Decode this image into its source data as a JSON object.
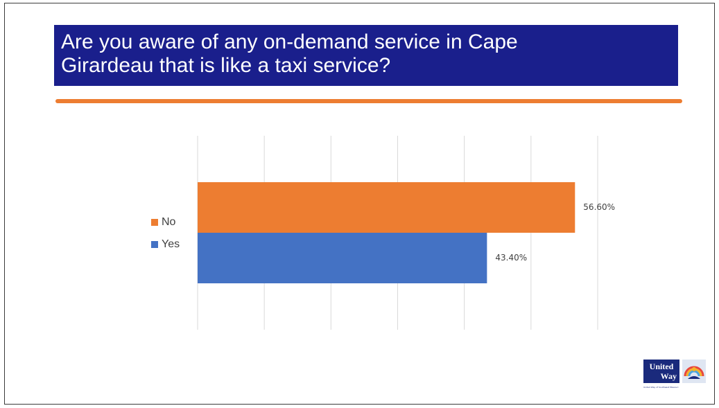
{
  "slide": {
    "title": "Are you aware of any on-demand service in Cape\nGirardeau that is like a taxi service?"
  },
  "colors": {
    "banner": "#1a1f8c",
    "accent_line": "#ed7d31",
    "no": "#ed7d31",
    "yes": "#4472c4",
    "gridline": "#d9d9d9"
  },
  "chart_data": {
    "type": "bar",
    "orientation": "horizontal",
    "title": "",
    "xlabel": "",
    "ylabel": "",
    "xlim": [
      0,
      60
    ],
    "grid": true,
    "legend_placement": "left",
    "series": [
      {
        "name": "No",
        "value": 56.6,
        "label": "56.60%",
        "color": "#ed7d31"
      },
      {
        "name": "Yes",
        "value": 43.4,
        "label": "43.40%",
        "color": "#4472c4"
      }
    ]
  },
  "logo": {
    "line1": "United",
    "line2": "Way",
    "tagline": "United Way of Southeast Missouri",
    "emblem": "hand-rainbow-icon"
  }
}
